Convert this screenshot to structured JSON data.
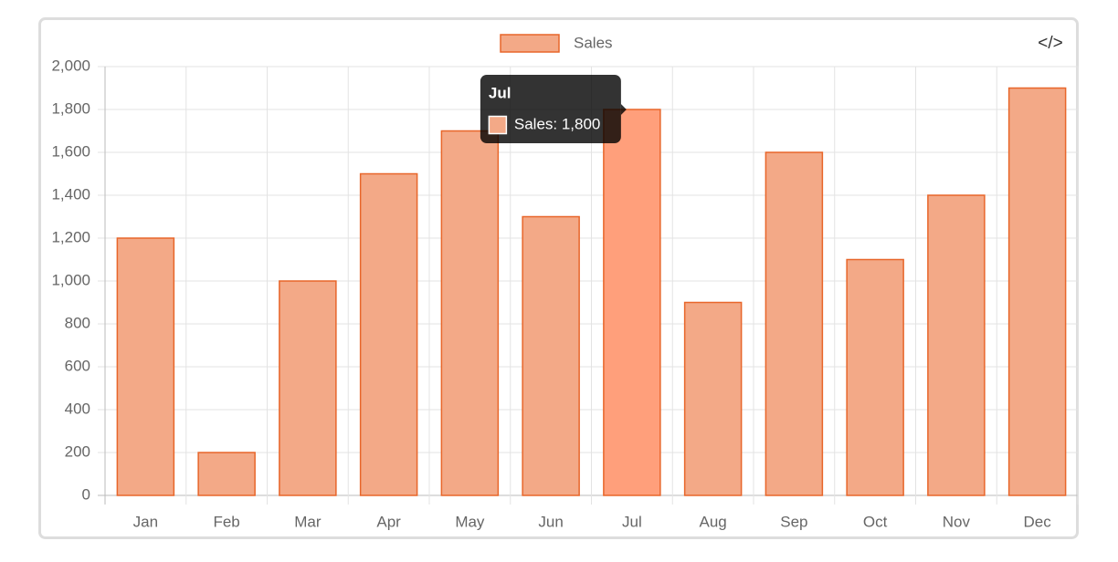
{
  "toolbar": {
    "code_icon": "</>"
  },
  "chart_data": {
    "type": "bar",
    "categories": [
      "Jan",
      "Feb",
      "Mar",
      "Apr",
      "May",
      "Jun",
      "Jul",
      "Aug",
      "Sep",
      "Oct",
      "Nov",
      "Dec"
    ],
    "series": [
      {
        "name": "Sales",
        "color": "#f3a987",
        "border_color": "#e8662a",
        "hover_color": "#ff9f7b",
        "values": [
          1200,
          200,
          1000,
          1500,
          1700,
          1300,
          1800,
          900,
          1600,
          1100,
          1400,
          1900
        ]
      }
    ],
    "ylim": [
      0,
      2000
    ],
    "yticks": [
      0,
      200,
      400,
      600,
      800,
      {
        "value": 1000,
        "label": "1,000"
      },
      {
        "value": 1200,
        "label": "1,200"
      },
      {
        "value": 1400,
        "label": "1,400"
      },
      {
        "value": 1600,
        "label": "1,600"
      },
      {
        "value": 1800,
        "label": "1,800"
      },
      {
        "value": 2000,
        "label": "2,000"
      }
    ],
    "grid": true,
    "legend": "top",
    "tooltip": {
      "title": "Jul",
      "label": "Sales: 1,800"
    }
  }
}
